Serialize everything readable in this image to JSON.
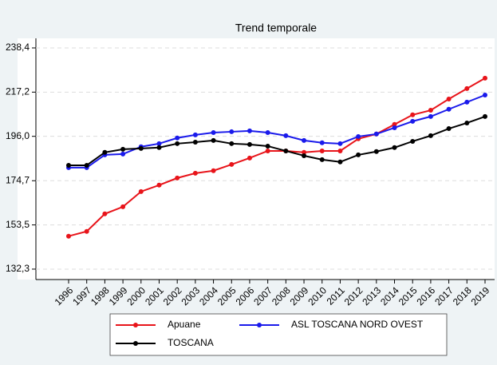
{
  "chart_data": {
    "type": "line",
    "title": "Trend temporale",
    "categories": [
      "1996",
      "1997",
      "1998",
      "1999",
      "2000",
      "2001",
      "2002",
      "2003",
      "2004",
      "2005",
      "2006",
      "2007",
      "2008",
      "2009",
      "2010",
      "2011",
      "2012",
      "2013",
      "2014",
      "2015",
      "2016",
      "2017",
      "2018",
      "2019"
    ],
    "series": [
      {
        "name": "Apuane",
        "color": "#e8141a",
        "values": [
          148.1,
          150.4,
          158.8,
          162.2,
          169.5,
          172.6,
          176.0,
          178.3,
          179.5,
          182.5,
          185.6,
          189.0,
          189.0,
          188.3,
          189.0,
          189.0,
          194.8,
          197.1,
          201.7,
          206.3,
          208.5,
          213.9,
          218.9,
          223.9
        ]
      },
      {
        "name": "ASL TOSCANA NORD OVEST",
        "color": "#1a1aeb",
        "values": [
          181.0,
          181.0,
          187.1,
          187.5,
          191.0,
          192.5,
          195.2,
          196.7,
          197.8,
          198.2,
          198.6,
          197.8,
          196.3,
          194.0,
          192.9,
          192.5,
          195.9,
          197.1,
          200.1,
          203.2,
          205.5,
          209.0,
          212.4,
          215.8
        ]
      },
      {
        "name": "TOSCANA",
        "color": "#000000",
        "values": [
          182.1,
          182.1,
          188.3,
          189.8,
          190.2,
          190.6,
          192.5,
          193.2,
          194.0,
          192.5,
          192.1,
          191.3,
          189.0,
          186.7,
          184.8,
          183.7,
          187.1,
          188.7,
          190.6,
          193.6,
          196.3,
          199.7,
          202.4,
          205.5
        ]
      }
    ],
    "ylim": [
      127.3,
      243.0
    ],
    "yticks": [
      {
        "value": 132.3,
        "label": "132,3"
      },
      {
        "value": 153.5,
        "label": "153,5"
      },
      {
        "value": 174.7,
        "label": "174,7"
      },
      {
        "value": 196.0,
        "label": "196,0"
      },
      {
        "value": 217.2,
        "label": "217,2"
      },
      {
        "value": 238.4,
        "label": "238,4"
      }
    ],
    "grid": true
  }
}
